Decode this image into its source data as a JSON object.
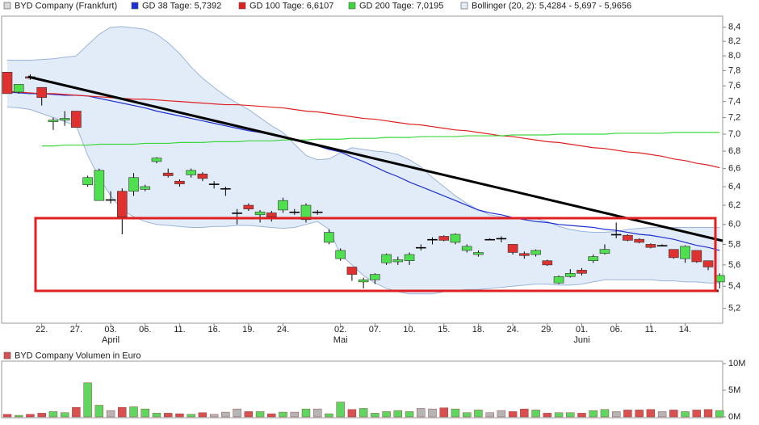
{
  "chart_data": [
    {
      "type": "candlestick",
      "name": "BYD Company (Frankfurt)",
      "color": "#d8d8d8",
      "categories": [
        null,
        null,
        null,
        "22.",
        null,
        null,
        "27.",
        null,
        null,
        "03.",
        null,
        null,
        "06.",
        null,
        null,
        "11.",
        null,
        null,
        "16.",
        null,
        null,
        "19.",
        null,
        null,
        "24.",
        null,
        null,
        null,
        null,
        "02.",
        null,
        null,
        "07.",
        null,
        null,
        "10.",
        null,
        null,
        "15.",
        null,
        null,
        "18.",
        null,
        null,
        "24.",
        null,
        null,
        "29.",
        null,
        null,
        "01.",
        null,
        null,
        "06.",
        null,
        null,
        "11.",
        null,
        null,
        "14.",
        null,
        null,
        null
      ],
      "months": [
        null,
        null,
        null,
        null,
        null,
        null,
        null,
        null,
        null,
        "April",
        null,
        null,
        null,
        null,
        null,
        null,
        null,
        null,
        null,
        null,
        null,
        null,
        null,
        null,
        null,
        null,
        null,
        null,
        null,
        "Mai",
        null,
        null,
        null,
        null,
        null,
        null,
        null,
        null,
        null,
        null,
        null,
        null,
        null,
        null,
        null,
        null,
        null,
        null,
        null,
        null,
        "Juni",
        null,
        null,
        null,
        null,
        null,
        null,
        null,
        null,
        null,
        null,
        null,
        null
      ],
      "open": [
        7.78,
        7.52,
        7.72,
        7.58,
        7.15,
        7.17,
        7.28,
        6.42,
        6.25,
        6.26,
        6.35,
        6.35,
        6.37,
        6.68,
        6.55,
        6.46,
        6.53,
        6.54,
        6.43,
        6.38,
        6.12,
        6.2,
        6.1,
        6.12,
        6.15,
        6.13,
        6.05,
        6.13,
        5.82,
        5.66,
        5.58,
        5.44,
        5.46,
        5.62,
        5.63,
        5.64,
        5.77,
        5.85,
        5.88,
        5.82,
        5.74,
        5.7,
        5.85,
        5.86,
        5.8,
        5.71,
        5.7,
        5.64,
        5.43,
        5.49,
        5.55,
        5.64,
        5.71,
        5.9,
        5.89,
        5.85,
        5.8,
        5.79,
        5.75,
        5.66,
        5.74,
        5.64,
        5.44
      ],
      "high": [
        7.78,
        7.62,
        7.75,
        7.58,
        7.2,
        7.28,
        7.28,
        6.52,
        6.6,
        6.35,
        6.38,
        6.55,
        6.42,
        6.73,
        6.6,
        6.48,
        6.6,
        6.56,
        6.46,
        6.4,
        6.16,
        6.22,
        6.15,
        6.14,
        6.28,
        6.16,
        6.22,
        6.15,
        5.95,
        5.76,
        5.58,
        5.48,
        5.52,
        5.71,
        5.68,
        5.72,
        5.8,
        5.87,
        5.89,
        5.91,
        5.8,
        5.74,
        5.86,
        5.88,
        5.8,
        5.73,
        5.75,
        5.65,
        5.5,
        5.56,
        5.57,
        5.7,
        5.8,
        6.02,
        5.9,
        5.86,
        5.81,
        5.8,
        5.75,
        5.79,
        5.74,
        5.64,
        5.52
      ],
      "low": [
        7.5,
        7.5,
        7.68,
        7.35,
        7.05,
        7.1,
        7.08,
        6.4,
        6.25,
        6.22,
        5.9,
        6.3,
        6.35,
        6.66,
        6.5,
        6.4,
        6.5,
        6.46,
        6.38,
        6.3,
        6.0,
        6.14,
        6.02,
        6.03,
        6.12,
        6.1,
        6.02,
        6.1,
        5.8,
        5.64,
        5.45,
        5.38,
        5.42,
        5.6,
        5.6,
        5.6,
        5.74,
        5.8,
        5.83,
        5.8,
        5.72,
        5.68,
        5.84,
        5.82,
        5.7,
        5.66,
        5.68,
        5.59,
        5.42,
        5.48,
        5.5,
        5.62,
        5.7,
        5.86,
        5.83,
        5.81,
        5.76,
        5.78,
        5.66,
        5.62,
        5.62,
        5.55,
        5.38
      ],
      "close": [
        7.5,
        7.62,
        7.7,
        7.45,
        7.17,
        7.19,
        7.08,
        6.5,
        6.58,
        6.26,
        6.08,
        6.5,
        6.4,
        6.72,
        6.52,
        6.43,
        6.58,
        6.49,
        6.43,
        6.38,
        6.12,
        6.16,
        6.13,
        6.08,
        6.25,
        6.13,
        6.2,
        6.13,
        5.92,
        5.74,
        5.51,
        5.46,
        5.51,
        5.7,
        5.65,
        5.7,
        5.77,
        5.85,
        5.84,
        5.9,
        5.78,
        5.72,
        5.85,
        5.86,
        5.72,
        5.69,
        5.74,
        5.6,
        5.49,
        5.52,
        5.52,
        5.68,
        5.75,
        5.9,
        5.84,
        5.82,
        5.77,
        5.79,
        5.67,
        5.78,
        5.63,
        5.58,
        5.5
      ],
      "up_color": "#4fe04f",
      "down_color": "#e03131",
      "doji_color": "#000000",
      "series": [
        {
          "name": "GD 38 Tage: 5,7392",
          "color": "#1c2fd6",
          "values": [
            7.52,
            7.51,
            7.5,
            7.5,
            7.49,
            7.48,
            7.48,
            7.47,
            7.44,
            7.41,
            7.38,
            7.35,
            7.32,
            7.28,
            7.25,
            7.22,
            7.19,
            7.16,
            7.13,
            7.1,
            7.07,
            7.04,
            7.02,
            6.99,
            6.96,
            6.93,
            6.89,
            6.86,
            6.82,
            6.79,
            6.73,
            6.68,
            6.62,
            6.56,
            6.51,
            6.45,
            6.4,
            6.35,
            6.3,
            6.25,
            6.2,
            6.15,
            6.12,
            6.1,
            6.07,
            6.05,
            6.03,
            6.02,
            6.0,
            5.99,
            5.98,
            5.97,
            5.95,
            5.94,
            5.92,
            5.9,
            5.89,
            5.87,
            5.85,
            5.82,
            5.79,
            5.77,
            5.74
          ]
        },
        {
          "name": "GD 100 Tage: 6,6107",
          "color": "#e02020",
          "values": [
            7.53,
            7.52,
            7.51,
            7.5,
            7.5,
            7.49,
            7.48,
            7.47,
            7.46,
            7.45,
            7.44,
            7.43,
            7.43,
            7.42,
            7.41,
            7.4,
            7.39,
            7.38,
            7.37,
            7.36,
            7.36,
            7.35,
            7.34,
            7.33,
            7.32,
            7.3,
            7.28,
            7.27,
            7.25,
            7.23,
            7.21,
            7.19,
            7.18,
            7.16,
            7.14,
            7.12,
            7.11,
            7.09,
            7.07,
            7.05,
            7.04,
            7.02,
            7.0,
            6.98,
            6.97,
            6.95,
            6.93,
            6.91,
            6.9,
            6.88,
            6.86,
            6.84,
            6.83,
            6.81,
            6.79,
            6.78,
            6.76,
            6.74,
            6.71,
            6.69,
            6.66,
            6.64,
            6.61
          ]
        },
        {
          "name": "GD 200 Tage: 7,0195",
          "color": "#3ed63e",
          "values": [
            null,
            null,
            null,
            6.86,
            6.86,
            6.87,
            6.87,
            6.87,
            6.88,
            6.88,
            6.88,
            6.88,
            6.89,
            6.89,
            6.89,
            6.9,
            6.9,
            6.9,
            6.91,
            6.91,
            6.91,
            6.92,
            6.92,
            6.92,
            6.93,
            6.93,
            6.93,
            6.94,
            6.94,
            6.94,
            6.95,
            6.95,
            6.95,
            6.96,
            6.96,
            6.96,
            6.97,
            6.97,
            6.97,
            6.97,
            6.98,
            6.98,
            6.98,
            6.98,
            6.99,
            6.99,
            6.99,
            6.99,
            7.0,
            7.0,
            7.0,
            7.0,
            7.0,
            7.01,
            7.01,
            7.01,
            7.01,
            7.01,
            7.02,
            7.02,
            7.02,
            7.02,
            7.02
          ]
        }
      ],
      "band": {
        "name": "Bollinger (20, 2): 5,4284 - 5,697 - 5,9656",
        "color": "#e2ebf8",
        "line_color": "#9bb5d9",
        "upper": [
          7.94,
          7.94,
          7.94,
          7.95,
          7.96,
          7.98,
          8.0,
          8.15,
          8.3,
          8.4,
          8.41,
          8.39,
          8.37,
          8.3,
          8.18,
          8.03,
          7.85,
          7.7,
          7.58,
          7.47,
          7.38,
          7.3,
          7.2,
          7.1,
          7.02,
          6.88,
          6.75,
          6.7,
          6.71,
          6.78,
          6.84,
          6.82,
          6.8,
          6.79,
          6.76,
          6.7,
          6.62,
          6.5,
          6.4,
          6.3,
          6.22,
          6.15,
          6.1,
          6.08,
          6.07,
          6.07,
          6.06,
          6.03,
          5.98,
          5.95,
          5.93,
          5.92,
          5.92,
          5.93,
          5.95,
          5.96,
          5.97,
          5.97,
          5.97,
          5.97,
          5.97,
          5.97,
          5.97
        ],
        "lower": [
          7.33,
          7.32,
          7.3,
          7.25,
          7.2,
          7.15,
          7.1,
          6.75,
          6.5,
          6.3,
          6.15,
          6.08,
          6.03,
          6.0,
          5.99,
          5.98,
          5.97,
          5.97,
          5.98,
          5.98,
          5.99,
          5.99,
          5.98,
          5.97,
          5.96,
          5.97,
          6.0,
          6.03,
          5.95,
          5.7,
          5.6,
          5.5,
          5.43,
          5.38,
          5.35,
          5.33,
          5.33,
          5.33,
          5.35,
          5.36,
          5.37,
          5.37,
          5.38,
          5.39,
          5.4,
          5.41,
          5.42,
          5.42,
          5.41,
          5.41,
          5.42,
          5.44,
          5.46,
          5.46,
          5.46,
          5.46,
          5.46,
          5.45,
          5.45,
          5.44,
          5.44,
          5.43,
          5.43
        ]
      },
      "ylim": [
        5.07,
        8.56
      ],
      "log_scale": true,
      "grid": false,
      "yticks": [
        {
          "value": 5.2,
          "label": "5,2"
        },
        {
          "value": 5.4,
          "label": "5,4"
        },
        {
          "value": 5.6,
          "label": "5,6"
        },
        {
          "value": 5.8,
          "label": "5,8"
        },
        {
          "value": 6,
          "label": "6,0"
        },
        {
          "value": 6.2,
          "label": "6,2"
        },
        {
          "value": 6.4,
          "label": "6,4"
        },
        {
          "value": 6.6,
          "label": "6,6"
        },
        {
          "value": 6.8,
          "label": "6,8"
        },
        {
          "value": 7,
          "label": "7,0"
        },
        {
          "value": 7.2,
          "label": "7,2"
        },
        {
          "value": 7.4,
          "label": "7,4"
        },
        {
          "value": 7.6,
          "label": "7,6"
        },
        {
          "value": 7.8,
          "label": "7,8"
        },
        {
          "value": 8,
          "label": "8,0"
        },
        {
          "value": 8.2,
          "label": "8,2"
        },
        {
          "value": 8.4,
          "label": "8,4"
        }
      ]
    },
    {
      "type": "bar",
      "title": "BYD Company Volumen in Euro",
      "color": "#d95050",
      "up_color": "#5fd65f",
      "down_color": "#d95050",
      "flat_color": "#b5b5b5",
      "values": [
        500000,
        300000,
        500000,
        700000,
        1000000,
        800000,
        1800000,
        6400000,
        2200000,
        1200000,
        1800000,
        1900000,
        1500000,
        700000,
        700000,
        600000,
        500000,
        800000,
        500000,
        900000,
        1500000,
        1000000,
        1000000,
        600000,
        900000,
        900000,
        1500000,
        1500000,
        600000,
        2800000,
        1400000,
        1600000,
        700000,
        1000000,
        1200000,
        1000000,
        1600000,
        1500000,
        1700000,
        1500000,
        800000,
        1300000,
        800000,
        1200000,
        1000000,
        1500000,
        1300000,
        700000,
        800000,
        800000,
        700000,
        1200000,
        1400000,
        1000000,
        1300000,
        1300000,
        1400000,
        1000000,
        1300000,
        1000000,
        1300000,
        1400000,
        1200000
      ],
      "ylim": [
        0,
        10000000
      ],
      "yticks": [
        {
          "value": 0,
          "label": "0M"
        },
        {
          "value": 5000000,
          "label": "5M"
        },
        {
          "value": 10000000,
          "label": "10M"
        }
      ]
    }
  ]
}
